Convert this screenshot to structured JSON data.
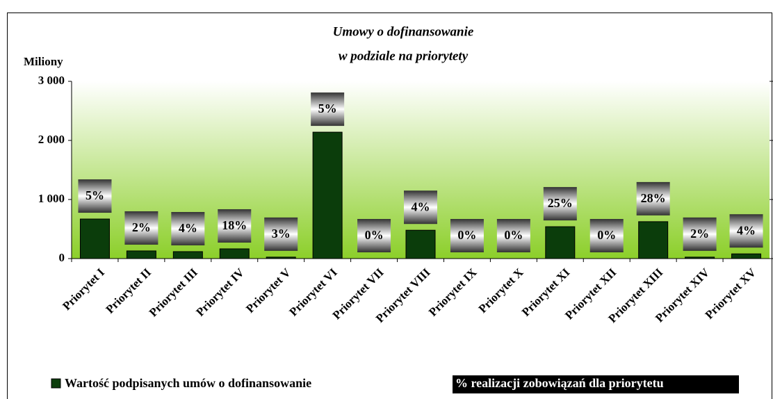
{
  "chart_data": {
    "type": "bar",
    "title": [
      "Umowy o dofinansowanie",
      "w podziale na priorytety"
    ],
    "y_label": "Miliony",
    "categories": [
      "Priorytet I",
      "Priorytet II",
      "Priorytet III",
      "Priorytet IV",
      "Priorytet V",
      "Priorytet VI",
      "Priorytet VII",
      "Priorytet VIII",
      "Priorytet IX",
      "Priorytet X",
      "Priorytet XI",
      "Priorytet XII",
      "Priorytet XIII",
      "Priorytet XIV",
      "Priorytet XV"
    ],
    "series": [
      {
        "name": "Wartość podpisanych umów o dofinansowanie",
        "color": "#0b3d0b",
        "values": [
          670,
          130,
          118,
          165,
          25,
          2140,
          0,
          480,
          0,
          0,
          540,
          0,
          625,
          25,
          80
        ]
      },
      {
        "name": "% realizacji zobowiązań dla priorytetu",
        "color": "#000000",
        "values": [
          5,
          2,
          4,
          18,
          3,
          5,
          0,
          4,
          0,
          0,
          25,
          0,
          28,
          2,
          4
        ],
        "value_labels": [
          "5%",
          "2%",
          "4%",
          "18%",
          "3%",
          "5%",
          "0%",
          "4%",
          "0%",
          "0%",
          "25%",
          "0%",
          "28%",
          "2%",
          "4%"
        ]
      }
    ],
    "ylim": [
      0,
      3000
    ],
    "yticks": [
      {
        "value": 0,
        "label": "0"
      },
      {
        "value": 1000,
        "label": "1 000"
      },
      {
        "value": 2000,
        "label": "2 000"
      },
      {
        "value": 3000,
        "label": "3 000"
      }
    ]
  }
}
